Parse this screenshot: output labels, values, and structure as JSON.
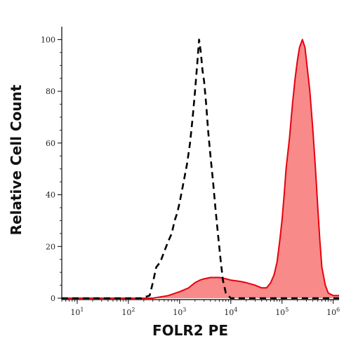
{
  "chart_data": {
    "type": "area",
    "xlabel": "FOLR2 PE",
    "ylabel": "Relative Cell Count",
    "x_scale": "log",
    "xlim": [
      5,
      1300000
    ],
    "ylim": [
      0,
      105
    ],
    "x_ticks": [
      {
        "value": 10,
        "base": "10",
        "exp": "1"
      },
      {
        "value": 100,
        "base": "10",
        "exp": "2"
      },
      {
        "value": 1000,
        "base": "10",
        "exp": "3"
      },
      {
        "value": 10000,
        "base": "10",
        "exp": "4"
      },
      {
        "value": 100000,
        "base": "10",
        "exp": "5"
      },
      {
        "value": 1000000,
        "base": "10",
        "exp": "6"
      }
    ],
    "y_ticks": [
      0,
      20,
      40,
      60,
      80,
      100
    ],
    "grid": false,
    "legend": "none",
    "series": [
      {
        "style": "dashed",
        "color": "#000000",
        "fill": "none",
        "points": [
          [
            5,
            0
          ],
          [
            180,
            0
          ],
          [
            260,
            1
          ],
          [
            300,
            6
          ],
          [
            350,
            12
          ],
          [
            420,
            14
          ],
          [
            500,
            18
          ],
          [
            600,
            22
          ],
          [
            700,
            25
          ],
          [
            800,
            30
          ],
          [
            900,
            33
          ],
          [
            1000,
            37
          ],
          [
            1200,
            45
          ],
          [
            1400,
            52
          ],
          [
            1600,
            60
          ],
          [
            1800,
            70
          ],
          [
            2000,
            80
          ],
          [
            2200,
            90
          ],
          [
            2400,
            100
          ],
          [
            2600,
            95
          ],
          [
            2800,
            88
          ],
          [
            3000,
            84
          ],
          [
            3300,
            75
          ],
          [
            3600,
            65
          ],
          [
            4000,
            55
          ],
          [
            4500,
            45
          ],
          [
            5000,
            35
          ],
          [
            5600,
            25
          ],
          [
            6300,
            15
          ],
          [
            7000,
            7
          ],
          [
            8000,
            2
          ],
          [
            10000,
            0
          ],
          [
            1300000,
            0
          ]
        ]
      },
      {
        "style": "solid",
        "color": "#e8000d",
        "fill": "#f88a8a",
        "points": [
          [
            5,
            0
          ],
          [
            300,
            0
          ],
          [
            600,
            1
          ],
          [
            1000,
            2.5
          ],
          [
            1500,
            4
          ],
          [
            2000,
            6
          ],
          [
            2500,
            7
          ],
          [
            3000,
            7.5
          ],
          [
            4000,
            8
          ],
          [
            5000,
            8
          ],
          [
            6000,
            8
          ],
          [
            8000,
            7.5
          ],
          [
            10000,
            7
          ],
          [
            15000,
            6.5
          ],
          [
            20000,
            6
          ],
          [
            30000,
            5
          ],
          [
            40000,
            4
          ],
          [
            50000,
            4
          ],
          [
            60000,
            6
          ],
          [
            70000,
            9
          ],
          [
            80000,
            14
          ],
          [
            90000,
            22
          ],
          [
            100000,
            30
          ],
          [
            110000,
            40
          ],
          [
            120000,
            50
          ],
          [
            140000,
            62
          ],
          [
            160000,
            75
          ],
          [
            180000,
            85
          ],
          [
            200000,
            92
          ],
          [
            220000,
            97
          ],
          [
            250000,
            100
          ],
          [
            280000,
            97
          ],
          [
            300000,
            92
          ],
          [
            350000,
            80
          ],
          [
            400000,
            65
          ],
          [
            450000,
            50
          ],
          [
            500000,
            35
          ],
          [
            550000,
            22
          ],
          [
            600000,
            12
          ],
          [
            700000,
            5
          ],
          [
            800000,
            2
          ],
          [
            1000000,
            1
          ],
          [
            1300000,
            1
          ]
        ]
      }
    ]
  }
}
